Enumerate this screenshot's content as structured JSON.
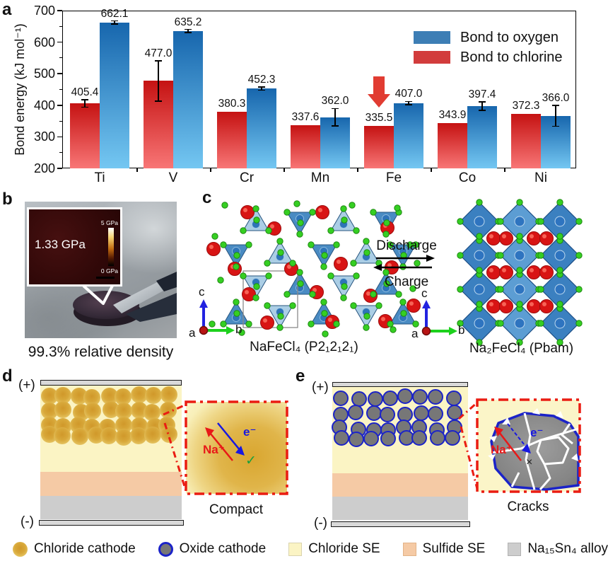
{
  "panels": {
    "a_label": "a",
    "b_label": "b",
    "c_label": "c",
    "d_label": "d",
    "e_label": "e"
  },
  "colors": {
    "oxygen_top": "#1766ad",
    "oxygen_bottom": "#74c7f2",
    "chlorine_top": "#c51212",
    "chlorine_bottom": "#f87676",
    "oxygen_flat": "#3d7eb5",
    "chlorine_flat": "#d23c3c",
    "annotation_arrow": "#e13c32",
    "ion_label": "#e81818",
    "electron_label": "#1818e0",
    "check_green": "#19a03c",
    "inset_border": "#ea1c12",
    "chloride_se": "#fbf4c4",
    "sulfide_se": "#f5caa5",
    "alloy": "#cdcdcd",
    "oxide_fill": "#777777",
    "oxide_border": "#1b23c8",
    "chloride_cathode": "#d8a83a"
  },
  "chart_data": {
    "type": "bar",
    "title": "",
    "ylabel": "Bond energy (kJ mol⁻¹)",
    "ylim": [
      200,
      700
    ],
    "yticks": [
      200,
      300,
      400,
      500,
      600,
      700
    ],
    "grid": false,
    "legend_position": "top-right",
    "categories": [
      "Ti",
      "V",
      "Cr",
      "Mn",
      "Fe",
      "Co",
      "Ni"
    ],
    "series": [
      {
        "name": "Bond to chlorine",
        "key": "chlorine",
        "values": [
          405.4,
          477.0,
          380.3,
          337.6,
          335.5,
          343.9,
          372.3
        ],
        "errors": [
          12,
          64,
          0,
          0,
          0,
          0,
          0
        ]
      },
      {
        "name": "Bond to oxygen",
        "key": "oxygen",
        "values": [
          662.1,
          635.2,
          452.3,
          362.0,
          407.0,
          397.4,
          366.0
        ],
        "errors": [
          5,
          5,
          5,
          28,
          5,
          13,
          33
        ]
      }
    ],
    "annotation": {
      "shape": "block-arrow-down",
      "target_category": "Fe",
      "target_series": "Bond to chlorine"
    }
  },
  "panel_b": {
    "inset_value": "1.33 GPa",
    "scale_top": "5 GPa",
    "scale_bottom": "0 GPa",
    "caption": "99.3% relative density"
  },
  "panel_c": {
    "discharge": "Discharge",
    "charge": "Charge",
    "left_formula": "NaFeCl₄ (P2₁2₁2₁)",
    "right_formula": "Na₂FeCl₄ (Pbam)",
    "axis_a": "a",
    "axis_b": "b",
    "axis_c": "c"
  },
  "panel_d": {
    "positive": "(+)",
    "negative": "(-)",
    "ion": "Na⁺",
    "electron": "e⁻",
    "check": "✓",
    "caption": "Compact"
  },
  "panel_e": {
    "positive": "(+)",
    "negative": "(-)",
    "ion": "Na⁺",
    "electron": "e⁻",
    "cross": "×",
    "caption": "Cracks"
  },
  "bottom_legend": {
    "items": [
      {
        "icon": "chloride-cathode-icon",
        "label": "Chloride cathode"
      },
      {
        "icon": "oxide-cathode-icon",
        "label": "Oxide cathode"
      },
      {
        "icon": "chloride-se-icon",
        "label": "Chloride SE"
      },
      {
        "icon": "sulfide-se-icon",
        "label": "Sulfide SE"
      },
      {
        "icon": "na15sn4-alloy-icon",
        "label": "Na₁₅Sn₄ alloy"
      }
    ]
  }
}
